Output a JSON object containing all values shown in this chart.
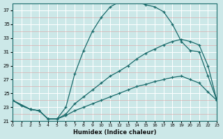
{
  "bg_color": "#cce8e8",
  "grid_major_color": "#ffffff",
  "grid_minor_color": "#dda0a0",
  "line_color": "#1a6b6b",
  "xlabel": "Humidex (Indice chaleur)",
  "xlim": [
    0,
    23
  ],
  "ylim": [
    21,
    38
  ],
  "yticks": [
    21,
    23,
    25,
    27,
    29,
    31,
    33,
    35,
    37
  ],
  "xticks": [
    0,
    1,
    2,
    3,
    4,
    5,
    6,
    7,
    8,
    9,
    10,
    11,
    12,
    13,
    14,
    15,
    16,
    17,
    18,
    19,
    20,
    21,
    22,
    23
  ],
  "curve1_x": [
    0,
    1,
    2,
    3,
    4,
    5,
    6,
    7,
    8,
    9,
    10,
    11,
    12,
    13,
    14,
    15,
    16,
    17,
    18,
    19,
    20,
    21,
    22,
    23
  ],
  "curve1_y": [
    24.0,
    23.2,
    22.7,
    22.5,
    21.3,
    21.3,
    23.0,
    27.8,
    31.2,
    34.0,
    36.0,
    37.5,
    38.2,
    38.4,
    38.2,
    37.8,
    37.5,
    36.8,
    35.0,
    32.5,
    31.2,
    31.0,
    27.5,
    24.0
  ],
  "curve2_x": [
    0,
    2,
    3,
    4,
    5,
    6,
    7,
    8,
    9,
    10,
    11,
    12,
    13,
    14,
    15,
    16,
    17,
    18,
    19,
    20,
    21,
    22,
    23
  ],
  "curve2_y": [
    24.0,
    22.7,
    22.5,
    21.3,
    21.3,
    22.0,
    23.5,
    24.5,
    25.5,
    26.5,
    27.5,
    28.2,
    29.0,
    30.0,
    30.8,
    31.4,
    32.0,
    32.5,
    32.8,
    32.5,
    32.0,
    29.0,
    24.0
  ],
  "curve3_x": [
    0,
    2,
    3,
    4,
    5,
    6,
    7,
    8,
    9,
    10,
    11,
    12,
    13,
    14,
    15,
    16,
    17,
    18,
    19,
    20,
    21,
    22,
    23
  ],
  "curve3_y": [
    24.0,
    22.7,
    22.5,
    21.3,
    21.3,
    21.8,
    22.5,
    23.0,
    23.5,
    24.0,
    24.5,
    25.0,
    25.5,
    26.0,
    26.3,
    26.7,
    27.0,
    27.3,
    27.5,
    27.0,
    26.5,
    25.2,
    24.0
  ]
}
